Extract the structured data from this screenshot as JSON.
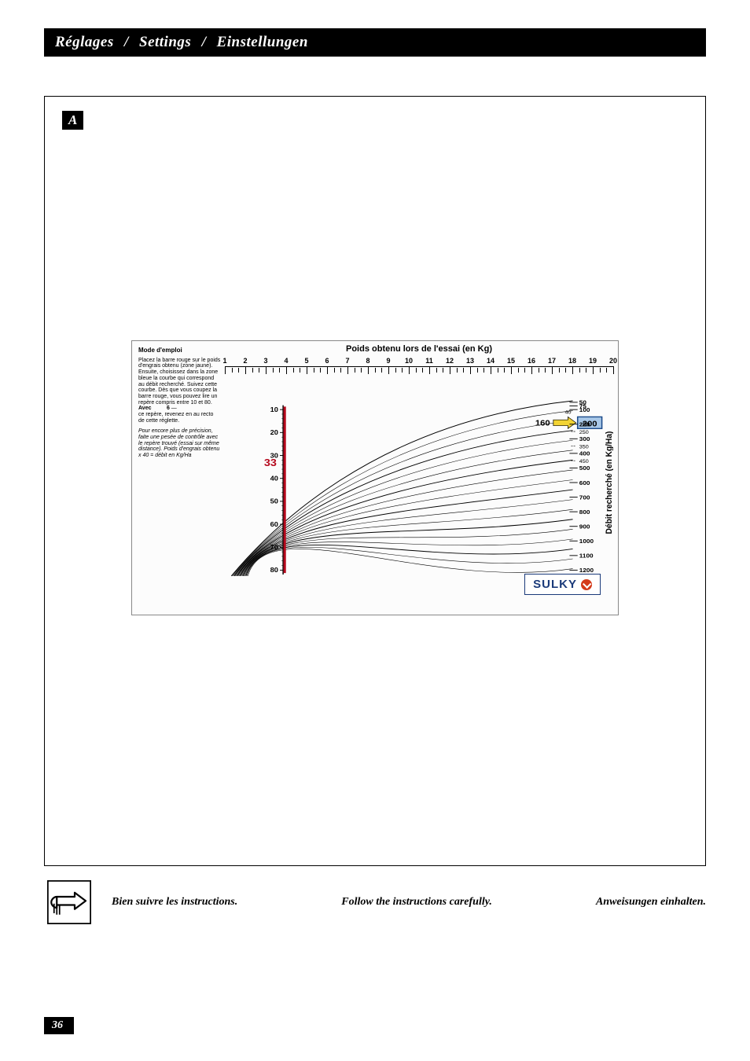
{
  "header": {
    "title_fr": "Réglages",
    "title_en": "Settings",
    "title_de": "Einstellungen",
    "sep": "/"
  },
  "section_tag": "A",
  "instructions": {
    "mode_title": "Mode d'emploi",
    "para1": "Placez la barre rouge sur le poids d'engrais obtenu (zone jaune). Ensuite, choisissez dans la zone bleue la courbe qui correspond au débit recherché. Suivez cette courbe. Dès que vous coupez la barre rouge, vous pouvez lire un repère compris entre 10 et 80.",
    "avec_value": "6",
    "avec_label": "Avec",
    "para1b": "ce repère, revenez en au recto de cette réglette.",
    "para2": "Pour encore plus de précision, faite une pesée de contrôle avec le repère trouvé (essai sur même distance). Poids d'engrais obtenu x 40 = débit en Kg/Ha"
  },
  "chart": {
    "title": "Poids obtenu lors de l'essai (en Kg)",
    "y_axis_label": "Débit recherché (en Kg/Ha)",
    "top_scale_values": [
      1,
      2,
      3,
      4,
      5,
      6,
      7,
      8,
      9,
      10,
      11,
      12,
      13,
      14,
      15,
      16,
      17,
      18,
      19,
      20
    ],
    "side_ticks": [
      10,
      20,
      30,
      40,
      50,
      60,
      70,
      80
    ],
    "red_bar_value": 33,
    "debit_labels": [
      50,
      75,
      100,
      200,
      300,
      400,
      500,
      600,
      700,
      800,
      900,
      1000,
      1100,
      1200
    ],
    "debit_special_highlight_value": 200,
    "debit_arrow_160": 160,
    "arrow_40": 40,
    "dashed_250": 250,
    "dashed_350": 350,
    "dashed_450": 450,
    "curve_count": 18,
    "colors": {
      "curve_stroke": "#000000",
      "red_bar": "#b5081c",
      "red_text": "#b5081c",
      "blue_highlight_fill": "#a9c8e8",
      "blue_highlight_stroke": "#1a4a8a",
      "yellow_arrow": "#f2d333",
      "background": "#fcfcfc"
    },
    "font_sizes": {
      "title": 11,
      "tick": 9,
      "debit": 8
    }
  },
  "logo": {
    "text": "SULKY",
    "text_color": "#1a3a7a",
    "ball_color": "#d43a1a"
  },
  "footer": {
    "fr": "Bien suivre les instructions.",
    "en": "Follow the instructions carefully.",
    "de": "Anweisungen einhalten."
  },
  "page_number": "36"
}
